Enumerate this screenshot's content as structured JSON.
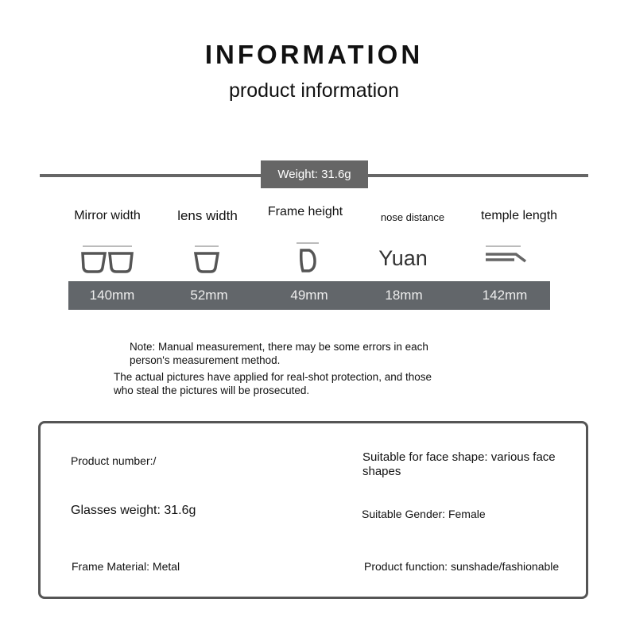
{
  "header": {
    "title": "INFORMATION",
    "subtitle": "product information"
  },
  "weight_label": "Weight: 31.6g",
  "measurements": [
    {
      "label": "Mirror width",
      "value": "140mm",
      "icon": "glasses-front-icon"
    },
    {
      "label": "lens width",
      "value": "52mm",
      "icon": "single-lens-icon"
    },
    {
      "label": "Frame height",
      "value": "49mm",
      "icon": "frame-side-icon"
    },
    {
      "label": "nose distance",
      "value": "18mm",
      "icon_text": "Yuan"
    },
    {
      "label": "temple length",
      "value": "142mm",
      "icon": "temple-arm-icon"
    }
  ],
  "notes": {
    "line1": "Note: Manual measurement, there may be some errors in each",
    "line2": "person's measurement method.",
    "line3": "The actual pictures have applied for real-shot protection, and those",
    "line4": "who steal the pictures will be prosecuted."
  },
  "specs": {
    "product_number": "Product number:/",
    "face_shape": "Suitable for face shape: various face shapes",
    "glasses_weight": "Glasses weight: 31.6g",
    "gender": "Suitable Gender: Female",
    "material": "Frame Material: Metal",
    "function": "Product function: sunshade/fashionable"
  },
  "colors": {
    "bar": "#62666a",
    "line": "#666666"
  }
}
